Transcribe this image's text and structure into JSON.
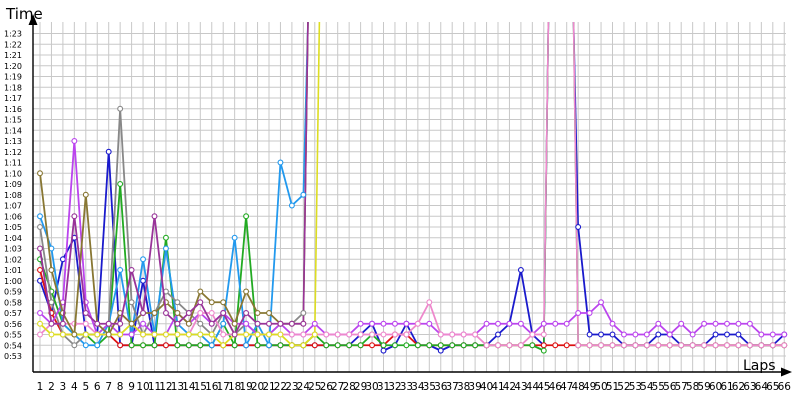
{
  "chart_data": {
    "type": "line",
    "xlabel": "Laps",
    "ylabel": "Time",
    "grid": true,
    "legend": "none",
    "ylim_seconds": [
      52,
      86
    ],
    "y_ticks": [
      "0:53",
      "0:54",
      "0:55",
      "0:56",
      "0:57",
      "0:58",
      "0:59",
      "1:00",
      "1:01",
      "1:02",
      "1:03",
      "1:04",
      "1:05",
      "1:06",
      "1:07",
      "1:08",
      "1:09",
      "1:10",
      "1:11",
      "1:12",
      "1:13",
      "1:14",
      "1:15",
      "1:16",
      "1:17",
      "1:18",
      "1:19",
      "1:20",
      "1:21",
      "1:22",
      "1:23"
    ],
    "x_ticks": [
      "1",
      "2",
      "3",
      "4",
      "5",
      "6",
      "7",
      "8",
      "9",
      "10",
      "11",
      "12",
      "13",
      "14",
      "15",
      "16",
      "17",
      "18",
      "19",
      "20",
      "21",
      "22",
      "23",
      "24",
      "25",
      "26",
      "27",
      "28",
      "29",
      "30",
      "31",
      "32",
      "33",
      "34",
      "35",
      "36",
      "37",
      "38",
      "39",
      "40",
      "41",
      "42",
      "43",
      "44",
      "45",
      "46",
      "47",
      "48",
      "49",
      "50",
      "51",
      "52",
      "53",
      "54",
      "55",
      "56",
      "57",
      "58",
      "59",
      "60",
      "61",
      "62",
      "63",
      "64",
      "65",
      "66"
    ],
    "series": [
      {
        "color": "#1a1acc",
        "marker": true,
        "values": [
          60,
          57,
          62,
          64,
          55,
          55,
          72,
          54,
          54,
          60,
          54,
          54,
          54,
          54,
          54,
          54,
          54,
          54,
          54,
          54,
          54,
          54,
          54,
          54,
          54,
          54,
          54,
          54,
          55,
          56,
          53.5,
          54,
          56,
          54,
          54,
          53.5,
          54,
          54,
          54,
          54,
          55,
          56,
          61,
          55,
          54,
          null,
          null,
          65,
          55,
          55,
          55,
          54,
          54,
          54,
          55,
          55,
          54,
          54,
          54,
          55,
          55,
          55,
          54,
          54,
          54,
          55
        ]
      },
      {
        "color": "#dd1111",
        "marker": true,
        "values": [
          61,
          57,
          55,
          55,
          55,
          55,
          55,
          54,
          54,
          54,
          54,
          54,
          54,
          54,
          54,
          54,
          54,
          54,
          54,
          54,
          54,
          54,
          54,
          54,
          54,
          54,
          54,
          54,
          54,
          54,
          54,
          55,
          55,
          54,
          54,
          54,
          54,
          54,
          54,
          54,
          54,
          54,
          54,
          54,
          54,
          54,
          54,
          54,
          54,
          54,
          54,
          54,
          54,
          54,
          54,
          54,
          54,
          54,
          54,
          54,
          54,
          54,
          54,
          54,
          54,
          54
        ]
      },
      {
        "color": "#22aa22",
        "marker": true,
        "values": [
          62,
          59,
          56,
          55,
          55,
          54,
          55,
          69,
          54,
          54,
          54,
          64,
          54,
          54,
          54,
          54,
          56,
          54,
          66,
          54,
          54,
          54,
          54,
          54,
          55,
          54,
          54,
          54,
          54,
          55,
          54,
          54,
          54,
          54,
          54,
          54,
          54,
          54,
          54,
          54,
          54,
          54,
          54,
          54,
          53.5,
          null,
          null,
          54,
          54,
          54,
          54,
          54,
          54,
          54,
          54,
          54,
          54,
          54,
          54,
          54,
          54,
          54,
          54,
          54,
          54,
          54
        ]
      },
      {
        "color": "#2299ee",
        "marker": true,
        "values": [
          66,
          63,
          56,
          55,
          54,
          54,
          56,
          61,
          55,
          62,
          55,
          63,
          56,
          55,
          55,
          54,
          56,
          64,
          54,
          56,
          54,
          71,
          67,
          68,
          null,
          null,
          null,
          null,
          null,
          null,
          null,
          null,
          null,
          null,
          null,
          null,
          null,
          null,
          null,
          null,
          null,
          null,
          null,
          null,
          null,
          null,
          null,
          null,
          null,
          null,
          null,
          null,
          null,
          null,
          null,
          null,
          null,
          null,
          null,
          null,
          null,
          null,
          null,
          null,
          null,
          null
        ]
      },
      {
        "color": "#888888",
        "marker": true,
        "values": [
          65,
          58,
          55,
          54,
          55,
          55,
          56,
          76,
          58,
          55,
          57,
          59,
          58,
          57,
          56,
          55,
          57,
          55,
          56,
          55,
          55,
          56,
          56,
          57,
          null,
          null,
          null,
          null,
          null,
          null,
          null,
          null,
          null,
          null,
          null,
          null,
          null,
          null,
          null,
          null,
          null,
          null,
          null,
          null,
          null,
          null,
          null,
          null,
          null,
          null,
          null,
          null,
          null,
          null,
          null,
          null,
          null,
          null,
          null,
          null,
          null,
          null,
          null,
          null,
          null,
          null
        ]
      },
      {
        "color": "#bb44ee",
        "marker": true,
        "values": [
          57,
          56,
          58,
          73,
          58,
          55,
          56,
          55,
          55,
          56,
          55,
          55,
          57,
          56,
          57,
          56,
          57,
          56,
          56,
          55,
          55,
          56,
          55,
          55,
          56,
          55,
          55,
          55,
          56,
          56,
          56,
          56,
          56,
          56,
          56,
          55,
          55,
          55,
          55,
          56,
          56,
          56,
          56,
          55,
          56,
          56,
          56,
          57,
          57,
          58,
          56,
          55,
          55,
          55,
          56,
          55,
          56,
          55,
          56,
          56,
          56,
          56,
          56,
          55,
          55,
          55
        ]
      },
      {
        "color": "#ee88cc",
        "marker": true,
        "values": [
          55,
          56,
          56,
          56,
          56,
          55,
          55,
          57,
          56,
          55,
          55,
          55,
          55,
          55,
          57,
          57,
          55,
          55,
          55,
          55,
          55,
          55,
          55,
          55,
          55,
          55,
          55,
          55,
          55,
          55,
          55,
          55,
          55,
          56,
          58,
          55,
          55,
          55,
          55,
          54,
          54,
          54,
          54,
          55,
          55,
          null,
          null,
          54,
          54,
          54,
          54,
          54,
          54,
          54,
          54,
          54,
          54,
          54,
          54,
          54,
          54,
          54,
          54,
          54,
          54,
          54
        ]
      },
      {
        "color": "#dddd22",
        "marker": true,
        "values": [
          56,
          55,
          55,
          55,
          55,
          55,
          55,
          55,
          56,
          55,
          55,
          55,
          55,
          55,
          55,
          55,
          54,
          55,
          55,
          55,
          55,
          55,
          54,
          54,
          55,
          null,
          null,
          null,
          null,
          null,
          null,
          null,
          null,
          null,
          null,
          null,
          null,
          null,
          null,
          null,
          null,
          null,
          null,
          null,
          null,
          null,
          null,
          null,
          null,
          null,
          null,
          null,
          null,
          null,
          null,
          null,
          null,
          null,
          null,
          null,
          null,
          null,
          null,
          null,
          null,
          null
        ]
      },
      {
        "color": "#887733",
        "marker": true,
        "values": [
          70,
          61,
          57,
          55,
          68,
          56,
          55,
          57,
          56,
          57,
          57,
          58,
          57,
          56,
          59,
          58,
          58,
          56,
          59,
          57,
          57,
          56,
          56,
          56,
          null,
          null,
          null,
          null,
          null,
          null,
          null,
          null,
          null,
          null,
          null,
          null,
          null,
          null,
          null,
          null,
          null,
          null,
          null,
          null,
          null,
          null,
          null,
          null,
          null,
          null,
          null,
          null,
          null,
          null,
          null,
          null,
          null,
          null,
          null,
          null,
          null,
          null,
          null,
          null,
          null,
          null
        ]
      },
      {
        "color": "#993399",
        "marker": true,
        "values": [
          63,
          56,
          56,
          66,
          57,
          56,
          56,
          56,
          61,
          57,
          66,
          57,
          56,
          57,
          58,
          56,
          57,
          55,
          57,
          56,
          56,
          56,
          56,
          56,
          null,
          null,
          null,
          null,
          null,
          null,
          null,
          null,
          null,
          null,
          null,
          null,
          null,
          null,
          null,
          null,
          null,
          null,
          null,
          null,
          null,
          null,
          null,
          null,
          null,
          null,
          null,
          null,
          null,
          null,
          null,
          null,
          null,
          null,
          null,
          null,
          null,
          null,
          null,
          null,
          null,
          null
        ]
      }
    ]
  }
}
